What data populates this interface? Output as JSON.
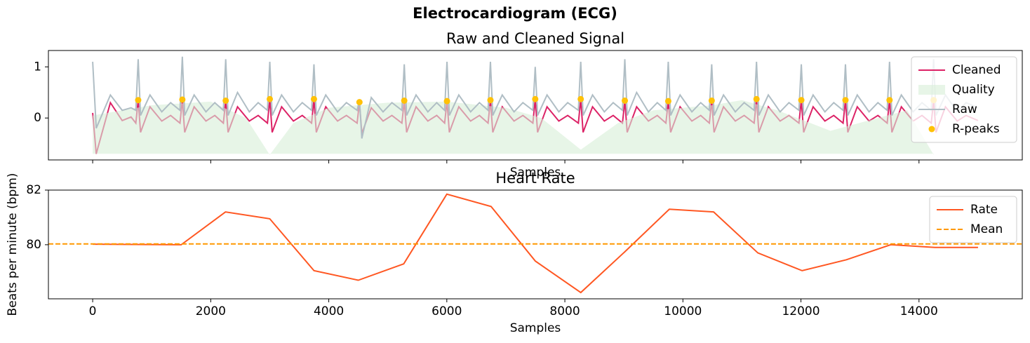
{
  "title": "Electrocardiogram (ECG)",
  "chart_data": [
    {
      "type": "line",
      "title": "Raw and Cleaned Signal",
      "xlabel": "Samples",
      "xlim": [
        -750,
        15750
      ],
      "xticks": [
        0,
        2000,
        4000,
        6000,
        8000,
        10000,
        12000,
        14000
      ],
      "show_xtick_labels": false,
      "ylim": [
        -0.82,
        1.32
      ],
      "yticks": [
        0,
        1
      ],
      "legend": "upper right",
      "x": [
        0,
        60,
        300,
        500,
        650,
        731,
        771,
        811,
        971,
        1171,
        1321,
        1479,
        1519,
        1559,
        1719,
        1919,
        2069,
        2214,
        2254,
        2294,
        2454,
        2654,
        2804,
        2961,
        3001,
        3041,
        3201,
        3401,
        3551,
        3709,
        3749,
        3789,
        3949,
        4149,
        4299,
        4480,
        4520,
        4560,
        4720,
        4920,
        5070,
        5239,
        5279,
        5319,
        5479,
        5679,
        5829,
        5963,
        6003,
        6043,
        6203,
        6403,
        6553,
        6699,
        6739,
        6779,
        6939,
        7139,
        7289,
        7458,
        7498,
        7538,
        7698,
        7898,
        8048,
        8229,
        8269,
        8309,
        8469,
        8669,
        8819,
        8976,
        9016,
        9056,
        9216,
        9416,
        9566,
        9712,
        9752,
        9792,
        9952,
        10152,
        10302,
        10448,
        10488,
        10528,
        10688,
        10888,
        11038,
        11207,
        11247,
        11287,
        11447,
        11647,
        11797,
        11966,
        12006,
        12046,
        12206,
        12406,
        12556,
        12714,
        12754,
        12794,
        12954,
        13154,
        13304,
        13461,
        13501,
        13541,
        13701,
        13901,
        14051,
        14208,
        14248,
        14288,
        14448,
        14648,
        14798,
        15000
      ],
      "series": [
        {
          "name": "Cleaned",
          "type": "line",
          "color": "#dc2266",
          "values": [
            0.1,
            -0.7,
            0.3,
            -0.05,
            0.02,
            -0.1,
            0.35,
            -0.28,
            0.22,
            -0.06,
            0.05,
            -0.1,
            0.36,
            -0.28,
            0.22,
            -0.06,
            0.05,
            -0.1,
            0.34,
            -0.28,
            0.22,
            -0.06,
            0.05,
            -0.1,
            0.37,
            -0.28,
            0.22,
            -0.06,
            0.05,
            -0.1,
            0.37,
            -0.28,
            0.22,
            -0.06,
            0.05,
            -0.1,
            0.31,
            -0.3,
            0.2,
            -0.06,
            0.05,
            -0.1,
            0.34,
            -0.28,
            0.22,
            -0.06,
            0.05,
            -0.1,
            0.33,
            -0.28,
            0.22,
            -0.06,
            0.05,
            -0.1,
            0.35,
            -0.28,
            0.22,
            -0.06,
            0.05,
            -0.1,
            0.37,
            -0.28,
            0.22,
            -0.06,
            0.05,
            -0.1,
            0.37,
            -0.28,
            0.22,
            -0.06,
            0.05,
            -0.1,
            0.34,
            -0.28,
            0.22,
            -0.06,
            0.05,
            -0.1,
            0.33,
            -0.28,
            0.22,
            -0.06,
            0.05,
            -0.1,
            0.34,
            -0.28,
            0.22,
            -0.06,
            0.05,
            -0.1,
            0.37,
            -0.28,
            0.22,
            -0.06,
            0.05,
            -0.1,
            0.35,
            -0.28,
            0.22,
            -0.06,
            0.05,
            -0.1,
            0.35,
            -0.28,
            0.22,
            -0.06,
            0.05,
            -0.1,
            0.35,
            -0.28,
            0.22,
            -0.06,
            0.05,
            -0.1,
            0.35,
            -0.28,
            0.22,
            -0.06,
            0.05,
            -0.05
          ]
        },
        {
          "name": "Quality",
          "type": "area",
          "color": "#d7eed7",
          "x": [
            0,
            1000,
            2000,
            2600,
            3000,
            3400,
            4000,
            5000,
            6000,
            7000,
            7600,
            8270,
            8900,
            9500,
            10500,
            11000,
            11600,
            12500,
            13300,
            13800,
            14250
          ],
          "values": [
            0.05,
            0.25,
            0.32,
            0.0,
            -0.72,
            -0.1,
            0.2,
            0.3,
            0.32,
            0.2,
            0.0,
            -0.62,
            -0.1,
            0.15,
            0.25,
            0.35,
            0.15,
            -0.25,
            0.0,
            0.15,
            -0.72
          ]
        },
        {
          "name": "Raw",
          "type": "line",
          "color": "#b0bec5",
          "values": [
            1.1,
            -0.2,
            0.45,
            0.15,
            0.2,
            0.15,
            1.15,
            0.05,
            0.45,
            0.12,
            0.3,
            0.15,
            1.2,
            0.05,
            0.45,
            0.12,
            0.3,
            0.15,
            1.15,
            0.05,
            0.5,
            0.12,
            0.3,
            0.15,
            1.1,
            0.05,
            0.45,
            0.12,
            0.3,
            0.15,
            1.05,
            0.05,
            0.45,
            0.12,
            0.3,
            0.15,
            0.35,
            -0.4,
            0.4,
            0.12,
            0.3,
            0.15,
            1.05,
            0.05,
            0.45,
            0.12,
            0.3,
            0.15,
            1.1,
            0.05,
            0.45,
            0.12,
            0.3,
            0.15,
            1.1,
            0.05,
            0.45,
            0.12,
            0.3,
            0.15,
            1.0,
            0.05,
            0.45,
            0.12,
            0.3,
            0.15,
            1.1,
            0.05,
            0.45,
            0.12,
            0.3,
            0.15,
            1.15,
            0.05,
            0.5,
            0.12,
            0.3,
            0.15,
            1.1,
            0.05,
            0.45,
            0.12,
            0.3,
            0.15,
            1.05,
            0.05,
            0.45,
            0.12,
            0.3,
            0.15,
            1.1,
            0.05,
            0.45,
            0.12,
            0.3,
            0.15,
            1.05,
            0.05,
            0.45,
            0.12,
            0.3,
            0.15,
            1.05,
            0.05,
            0.45,
            0.12,
            0.3,
            0.15,
            1.1,
            0.05,
            0.45,
            0.12,
            0.3,
            0.15,
            1.15,
            0.05,
            0.45,
            0.12,
            0.3,
            0.2
          ]
        },
        {
          "name": "R-peaks",
          "type": "scatter",
          "color": "#ffc107",
          "x": [
            771,
            1519,
            2254,
            3001,
            3749,
            4520,
            5279,
            6003,
            6739,
            7498,
            8269,
            9016,
            9752,
            10488,
            11247,
            12006,
            12754,
            13501,
            14248
          ],
          "values": [
            0.35,
            0.36,
            0.34,
            0.37,
            0.37,
            0.31,
            0.34,
            0.33,
            0.35,
            0.37,
            0.37,
            0.34,
            0.33,
            0.34,
            0.37,
            0.35,
            0.35,
            0.35,
            0.35
          ]
        }
      ]
    },
    {
      "type": "line",
      "title": "Heart Rate",
      "xlabel": "Samples",
      "ylabel": "Beats per minute (bpm)",
      "xlim": [
        -750,
        15750
      ],
      "xticks": [
        0,
        2000,
        4000,
        6000,
        8000,
        10000,
        12000,
        14000
      ],
      "show_xtick_labels": true,
      "ylim": [
        78.02,
        82.0
      ],
      "yticks": [
        80,
        82
      ],
      "legend": "upper right",
      "series": [
        {
          "name": "Rate",
          "type": "line",
          "color": "#ff5722",
          "x": [
            0,
            1500,
            2250,
            3000,
            3750,
            4500,
            5270,
            6000,
            6750,
            7500,
            8270,
            9020,
            9770,
            10520,
            11270,
            12020,
            12770,
            13520,
            14270,
            15000
          ],
          "values": [
            80.02,
            80.0,
            81.2,
            80.95,
            79.05,
            78.7,
            79.3,
            81.85,
            81.4,
            79.4,
            78.25,
            79.75,
            81.3,
            81.2,
            79.7,
            79.05,
            79.45,
            80.0,
            79.9,
            79.9
          ]
        },
        {
          "name": "Mean",
          "type": "hline",
          "color": "#ff9800",
          "dashed": true,
          "value": 80.03
        }
      ]
    }
  ]
}
